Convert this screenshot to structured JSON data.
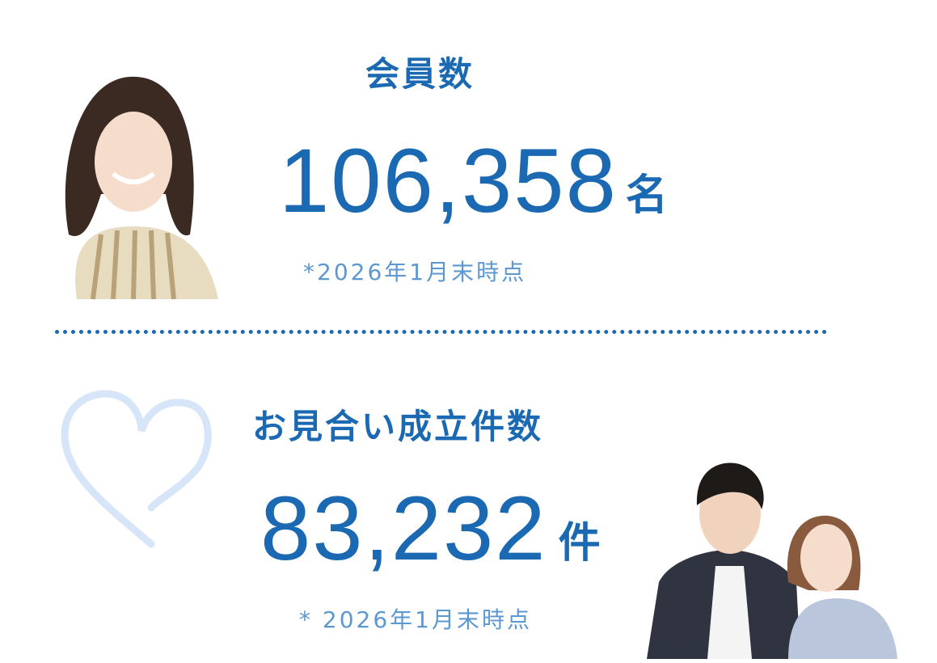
{
  "members": {
    "heading": "会員数",
    "value": "106,358",
    "unit": "名",
    "note": "*2026年1月末時点"
  },
  "matches": {
    "heading": "お見合い成立件数",
    "value": "83,232",
    "unit": "件",
    "note": "* 2026年1月末時点"
  },
  "colors": {
    "accent": "#1a69b2",
    "note": "#5b97d0",
    "heart": "#d6e6f8"
  },
  "icons": {
    "heart": "heart-outline-icon"
  }
}
